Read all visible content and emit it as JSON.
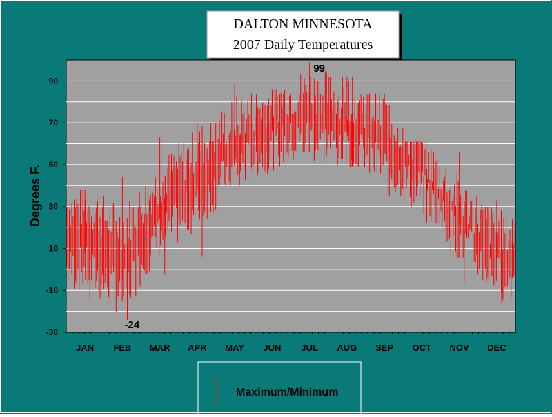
{
  "chart_data": {
    "type": "bar",
    "title": [
      "DALTON MINNESOTA",
      "2007 Daily Temperatures"
    ],
    "ylabel": "Degrees F.",
    "xlabel": "",
    "ylim": [
      -30,
      100
    ],
    "yticks": [
      -30,
      -10,
      10,
      30,
      50,
      70,
      90
    ],
    "categories": [
      "JAN",
      "FEB",
      "MAR",
      "APR",
      "MAY",
      "JUN",
      "JUL",
      "AUG",
      "SEP",
      "OCT",
      "NOV",
      "DEC"
    ],
    "grid": true,
    "legend": {
      "position": "bottom",
      "entries": [
        "Maximum/Minimum"
      ]
    },
    "annotations": [
      {
        "text": "99",
        "month": "JUL",
        "value": 99
      },
      {
        "text": "-24",
        "month": "FEB",
        "value": -24
      }
    ],
    "series": [
      {
        "name": "Maximum/Minimum",
        "color": "#ff0000",
        "monthly_high": [
          30,
          20,
          42,
          58,
          72,
          80,
          86,
          82,
          74,
          56,
          34,
          18
        ],
        "monthly_low": [
          0,
          -12,
          16,
          30,
          48,
          58,
          62,
          58,
          48,
          36,
          14,
          -4
        ],
        "record_high": [
          38,
          44,
          63,
          70,
          89,
          86,
          99,
          92,
          84,
          61,
          56,
          33
        ],
        "record_low": [
          -15,
          -24,
          -2,
          6,
          40,
          45,
          52,
          49,
          35,
          22,
          -6,
          -16
        ]
      }
    ]
  },
  "colors": {
    "background": "#0a7a78",
    "plot_area": "#a0a0a0",
    "gridline": "#ffffff",
    "data": "#ff0000"
  }
}
